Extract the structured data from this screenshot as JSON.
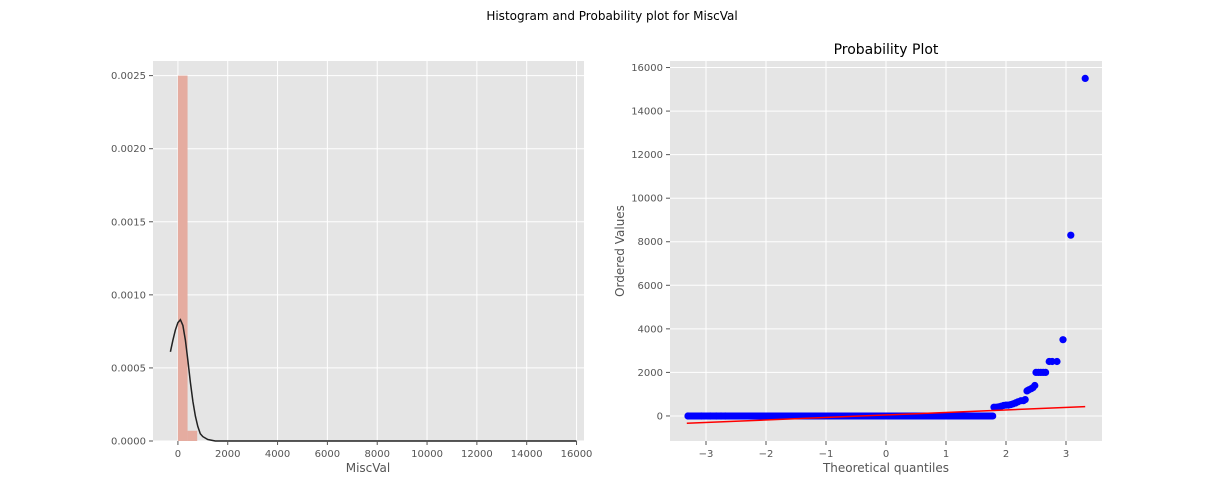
{
  "figure": {
    "suptitle": "Histogram and Probability plot for MiscVal"
  },
  "chart_data": [
    {
      "type": "bar",
      "subtype": "histogram_with_kde",
      "title": "",
      "xlabel": "MiscVal",
      "ylabel": "",
      "xlim": [
        -1000,
        16300
      ],
      "ylim": [
        0,
        0.0026
      ],
      "x_ticks": [
        0,
        2000,
        4000,
        6000,
        8000,
        10000,
        12000,
        14000,
        16000
      ],
      "y_ticks": [
        0.0,
        0.0005,
        0.001,
        0.0015,
        0.002,
        0.0025
      ],
      "y_tick_labels": [
        "0.0000",
        "0.0005",
        "0.0010",
        "0.0015",
        "0.0020",
        "0.0025"
      ],
      "bins": [
        {
          "x0": 0,
          "x1": 387,
          "density": 0.0025
        },
        {
          "x0": 387,
          "x1": 774,
          "density": 7e-05
        }
      ],
      "kde": [
        [
          -300,
          0.00061
        ],
        [
          -200,
          0.00069
        ],
        [
          -100,
          0.00076
        ],
        [
          0,
          0.00081
        ],
        [
          100,
          0.00083
        ],
        [
          200,
          0.00079
        ],
        [
          300,
          0.00069
        ],
        [
          400,
          0.00055
        ],
        [
          500,
          0.0004
        ],
        [
          600,
          0.00027
        ],
        [
          700,
          0.00017
        ],
        [
          800,
          0.0001
        ],
        [
          900,
          5e-05
        ],
        [
          1000,
          3e-05
        ],
        [
          1200,
          1e-05
        ],
        [
          1500,
          0.0
        ],
        [
          16000,
          0.0
        ]
      ],
      "bar_color": "#e5aca0",
      "kde_color": "#222222",
      "background": "#e5e5e5",
      "grid": true
    },
    {
      "type": "scatter",
      "subtype": "probability_plot",
      "title": "Probability Plot",
      "xlabel": "Theoretical quantiles",
      "ylabel": "Ordered Values",
      "xlim": [
        -3.6,
        3.6
      ],
      "ylim": [
        -1150,
        16300
      ],
      "x_ticks": [
        -3,
        -2,
        -1,
        0,
        1,
        2,
        3
      ],
      "x_tick_labels": [
        "−3",
        "−2",
        "−1",
        "0",
        "1",
        "2",
        "3"
      ],
      "y_ticks": [
        0,
        2000,
        4000,
        6000,
        8000,
        10000,
        12000,
        14000,
        16000
      ],
      "baseline": {
        "x_from": -3.3,
        "x_to": 1.78,
        "y": 0
      },
      "points": [
        [
          -3.3,
          0
        ],
        [
          -3.08,
          0
        ],
        [
          -2.93,
          0
        ],
        [
          -2.83,
          0
        ],
        [
          -2.75,
          0
        ],
        [
          -2.68,
          0
        ],
        [
          1.8,
          400
        ],
        [
          1.84,
          400
        ],
        [
          1.88,
          420
        ],
        [
          1.92,
          450
        ],
        [
          1.96,
          480
        ],
        [
          2.0,
          500
        ],
        [
          2.04,
          500
        ],
        [
          2.08,
          520
        ],
        [
          2.12,
          560
        ],
        [
          2.16,
          600
        ],
        [
          2.2,
          650
        ],
        [
          2.25,
          700
        ],
        [
          2.29,
          700
        ],
        [
          2.32,
          750
        ],
        [
          2.35,
          1150
        ],
        [
          2.38,
          1200
        ],
        [
          2.42,
          1250
        ],
        [
          2.45,
          1300
        ],
        [
          2.48,
          1400
        ],
        [
          2.5,
          2000
        ],
        [
          2.54,
          2000
        ],
        [
          2.58,
          2000
        ],
        [
          2.62,
          2000
        ],
        [
          2.66,
          2000
        ],
        [
          2.72,
          2500
        ],
        [
          2.77,
          2500
        ],
        [
          2.85,
          2500
        ],
        [
          2.95,
          3500
        ],
        [
          3.08,
          8300
        ],
        [
          3.32,
          15500
        ]
      ],
      "fit_line": {
        "slope": 115.35,
        "intercept": 45.6,
        "x_range": [
          -3.32,
          3.32
        ]
      },
      "point_color": "#0000ff",
      "line_color": "#ff0000",
      "background": "#e5e5e5",
      "grid": true
    }
  ]
}
